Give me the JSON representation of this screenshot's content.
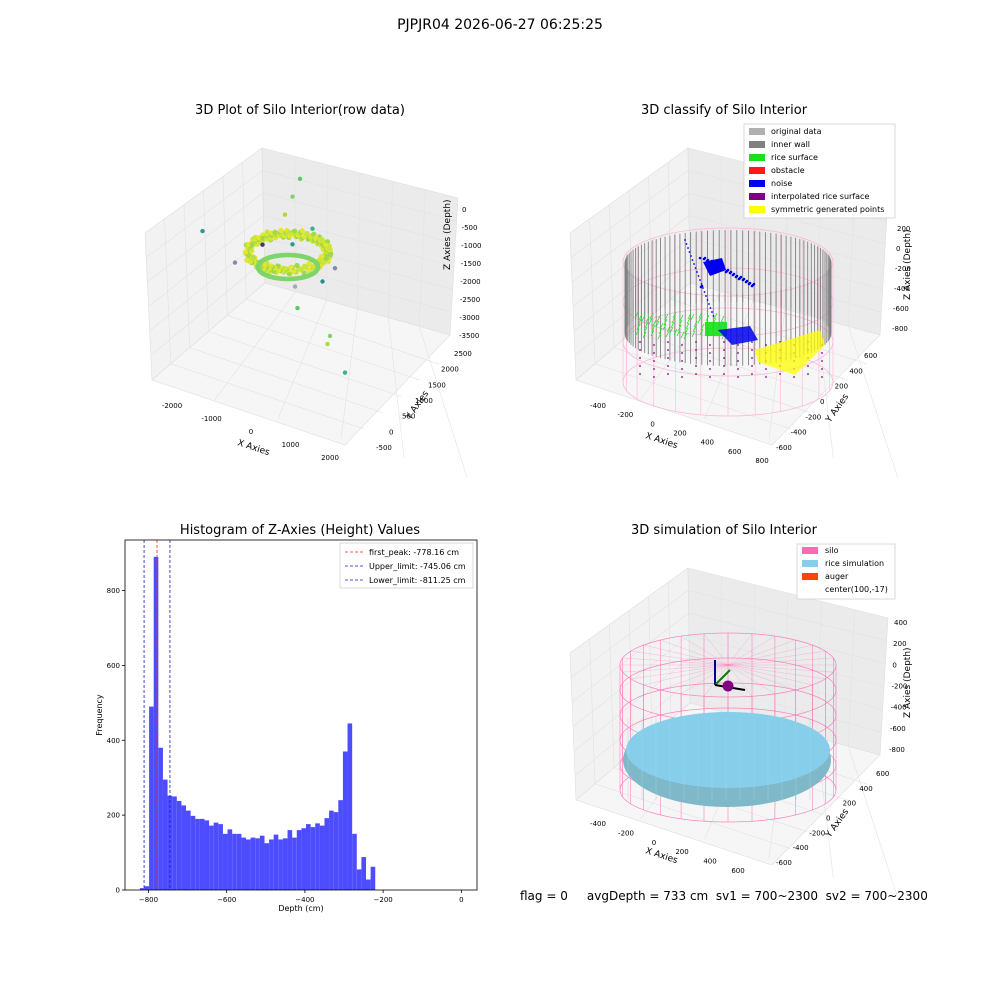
{
  "suptitle": "PJPJR04 2026-06-27 06:25:25",
  "status_text": "flag = 0     avgDepth = 733 cm  sv1 = 700~2300  sv2 = 700~2300",
  "colors": {
    "hist_bar": "#4d4dff",
    "first_peak": "#e8312a",
    "limits": "#1a1acc",
    "original": "#b0b0b0",
    "inner_wall": "#808080",
    "rice_surface": "#19e019",
    "obstacle": "#ff1a1a",
    "noise": "#0000ee",
    "interp": "#800080",
    "symmetric": "#ffff00",
    "silo": "#ff69b4",
    "rice_sim": "#87ceeb",
    "auger": "#ff4500"
  },
  "chart_data": [
    {
      "type": "scatter",
      "title": "3D Plot of Silo Interior(row data)",
      "xlabel": "X Axies",
      "ylabel": "Y Axies",
      "zlabel": "Z Axies (Depth)",
      "xticks": [
        "-2000",
        "-1000",
        "0",
        "1000",
        "2000"
      ],
      "yticks": [
        "-500",
        "0",
        "500",
        "1000",
        "1500",
        "2000",
        "2500"
      ],
      "zticks": [
        "0",
        "-500",
        "-1000",
        "-1500",
        "-2000",
        "-2500",
        "-3000",
        "-3500"
      ],
      "outliers": [
        {
          "x": 2100,
          "y": 2200,
          "z": -1600
        },
        {
          "x": 1900,
          "y": 2100,
          "z": -1900
        },
        {
          "x": 1700,
          "y": 2000,
          "z": -2200
        },
        {
          "x": 2000,
          "y": 1500,
          "z": -2100
        },
        {
          "x": 1400,
          "y": 1100,
          "z": -2200
        },
        {
          "x": 2200,
          "y": 1000,
          "z": -2500
        },
        {
          "x": 1800,
          "y": 700,
          "z": -2600
        },
        {
          "x": 900,
          "y": 1300,
          "z": -2400
        },
        {
          "x": 1200,
          "y": 600,
          "z": -2700
        },
        {
          "x": 1000,
          "y": 100,
          "z": -2800
        },
        {
          "x": 1600,
          "y": 0,
          "z": -3200
        },
        {
          "x": 1500,
          "y": -100,
          "z": -3300
        },
        {
          "x": 1600,
          "y": -600,
          "z": -3500
        },
        {
          "x": -200,
          "y": 1500,
          "z": -2400
        },
        {
          "x": 100,
          "y": 800,
          "z": -2500
        }
      ]
    },
    {
      "type": "scatter",
      "title": "3D classify of Silo Interior",
      "xlabel": "X Axies",
      "ylabel": "Y Axies",
      "zlabel": "Z Axies (Depth)",
      "xticks": [
        "-400",
        "-200",
        "0",
        "200",
        "400",
        "600",
        "800"
      ],
      "yticks": [
        "-600",
        "-400",
        "-200",
        "0",
        "200",
        "400",
        "600"
      ],
      "zticks": [
        "200",
        "0",
        "-200",
        "-400",
        "-600",
        "-800"
      ],
      "legend": [
        "original data",
        "inner wall",
        "rice surface",
        "obstacle",
        "noise",
        "interpolated rice surface",
        "symmetric generated points"
      ],
      "legend_loc": "upper right"
    },
    {
      "type": "bar",
      "title": "Histogram of Z-Axies (Height) Values",
      "xlabel": "Depth (cm)",
      "ylabel": "Frequency",
      "xlim": [
        -860,
        40
      ],
      "ylim": [
        0,
        935
      ],
      "xticks": [
        -800,
        -600,
        -400,
        -200,
        0
      ],
      "yticks": [
        0,
        200,
        400,
        600,
        800
      ],
      "bin_start": -822,
      "bin_width": 11.8,
      "values": [
        5,
        10,
        490,
        890,
        380,
        295,
        252,
        250,
        238,
        226,
        212,
        198,
        190,
        190,
        186,
        172,
        180,
        176,
        150,
        162,
        150,
        150,
        140,
        135,
        140,
        138,
        145,
        125,
        135,
        148,
        135,
        138,
        160,
        140,
        160,
        165,
        176,
        168,
        178,
        172,
        192,
        212,
        208,
        240,
        370,
        445,
        150,
        55,
        88,
        28,
        62
      ],
      "lines": [
        {
          "label": "first_peak: -778.16 cm",
          "x": -778.16,
          "color": "#e8312a"
        },
        {
          "label": "Upper_limit: -745.06 cm",
          "x": -745.06,
          "color": "#1a1acc"
        },
        {
          "label": "Lower_limit: -811.25 cm",
          "x": -811.25,
          "color": "#1a1acc"
        }
      ],
      "legend_loc": "upper right"
    },
    {
      "type": "scatter",
      "title": "3D simulation of Silo Interior",
      "xlabel": "X Axies",
      "ylabel": "Y Axies",
      "zlabel": "Z Axies (Depth)",
      "xticks": [
        "-400",
        "-200",
        "0",
        "200",
        "400",
        "600"
      ],
      "yticks": [
        "-600",
        "-400",
        "-200",
        "0",
        "200",
        "400",
        "600"
      ],
      "zticks": [
        "400",
        "200",
        "0",
        "-200",
        "-400",
        "-600",
        "-800"
      ],
      "legend": [
        "silo",
        "rice simulation",
        "auger",
        "center(100,-17)"
      ],
      "legend_loc": "upper right"
    }
  ]
}
